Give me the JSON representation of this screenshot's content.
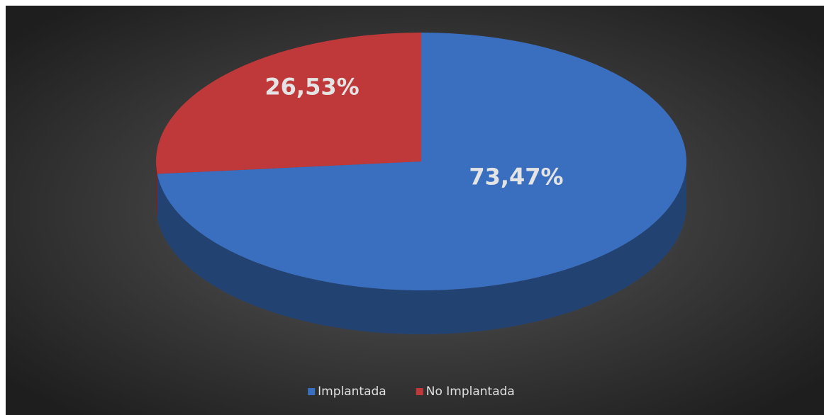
{
  "chart_data": {
    "type": "pie",
    "categories": [
      "Implantada",
      "No Implantada"
    ],
    "values": [
      73.47,
      26.53
    ],
    "value_labels": [
      "73,47%",
      "26,53%"
    ],
    "colors": [
      "#3a6fbf",
      "#c0393a"
    ],
    "legend": "bottom"
  }
}
